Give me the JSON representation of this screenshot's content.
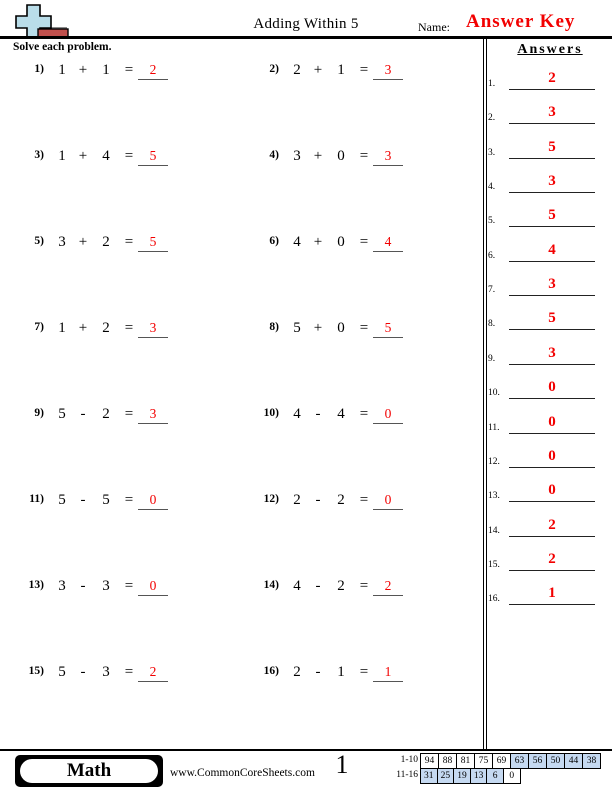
{
  "header": {
    "title": "Adding Within 5",
    "name_label": "Name:",
    "name_value": "Answer Key",
    "instruction": "Solve each problem."
  },
  "symbols": {
    "equals": "="
  },
  "problems": [
    {
      "num": "1)",
      "a": "1",
      "op": "+",
      "b": "1",
      "answer": "2"
    },
    {
      "num": "2)",
      "a": "2",
      "op": "+",
      "b": "1",
      "answer": "3"
    },
    {
      "num": "3)",
      "a": "1",
      "op": "+",
      "b": "4",
      "answer": "5"
    },
    {
      "num": "4)",
      "a": "3",
      "op": "+",
      "b": "0",
      "answer": "3"
    },
    {
      "num": "5)",
      "a": "3",
      "op": "+",
      "b": "2",
      "answer": "5"
    },
    {
      "num": "6)",
      "a": "4",
      "op": "+",
      "b": "0",
      "answer": "4"
    },
    {
      "num": "7)",
      "a": "1",
      "op": "+",
      "b": "2",
      "answer": "3"
    },
    {
      "num": "8)",
      "a": "5",
      "op": "+",
      "b": "0",
      "answer": "5"
    },
    {
      "num": "9)",
      "a": "5",
      "op": "-",
      "b": "2",
      "answer": "3"
    },
    {
      "num": "10)",
      "a": "4",
      "op": "-",
      "b": "4",
      "answer": "0"
    },
    {
      "num": "11)",
      "a": "5",
      "op": "-",
      "b": "5",
      "answer": "0"
    },
    {
      "num": "12)",
      "a": "2",
      "op": "-",
      "b": "2",
      "answer": "0"
    },
    {
      "num": "13)",
      "a": "3",
      "op": "-",
      "b": "3",
      "answer": "0"
    },
    {
      "num": "14)",
      "a": "4",
      "op": "-",
      "b": "2",
      "answer": "2"
    },
    {
      "num": "15)",
      "a": "5",
      "op": "-",
      "b": "3",
      "answer": "2"
    },
    {
      "num": "16)",
      "a": "2",
      "op": "-",
      "b": "1",
      "answer": "1"
    }
  ],
  "answers_panel": {
    "heading": "Answers",
    "items": [
      {
        "label": "1.",
        "value": "2"
      },
      {
        "label": "2.",
        "value": "3"
      },
      {
        "label": "3.",
        "value": "5"
      },
      {
        "label": "4.",
        "value": "3"
      },
      {
        "label": "5.",
        "value": "5"
      },
      {
        "label": "6.",
        "value": "4"
      },
      {
        "label": "7.",
        "value": "3"
      },
      {
        "label": "8.",
        "value": "5"
      },
      {
        "label": "9.",
        "value": "3"
      },
      {
        "label": "10.",
        "value": "0"
      },
      {
        "label": "11.",
        "value": "0"
      },
      {
        "label": "12.",
        "value": "0"
      },
      {
        "label": "13.",
        "value": "0"
      },
      {
        "label": "14.",
        "value": "2"
      },
      {
        "label": "15.",
        "value": "2"
      },
      {
        "label": "16.",
        "value": "1"
      }
    ]
  },
  "footer": {
    "subject_badge": "Math",
    "website": "www.CommonCoreSheets.com",
    "page_number": "1",
    "grading": {
      "row1_label": "1-10",
      "row1_cells": [
        "94",
        "88",
        "81",
        "75",
        "69",
        "63",
        "56",
        "50",
        "44",
        "38"
      ],
      "row1_shaded": [
        false,
        false,
        false,
        false,
        false,
        true,
        true,
        true,
        true,
        true
      ],
      "row2_label": "11-16",
      "row2_cells": [
        "31",
        "25",
        "19",
        "13",
        "6",
        "0"
      ],
      "row2_shaded": [
        true,
        true,
        true,
        true,
        true,
        false
      ]
    }
  },
  "colors": {
    "answer_red": "#f20000",
    "grade_cell_blue": "#c5d9f1",
    "icon_plus_blue": "#b9dde9",
    "icon_minus_red": "#c0504d"
  }
}
